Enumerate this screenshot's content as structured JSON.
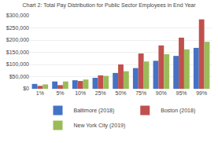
{
  "chart_data": {
    "type": "bar",
    "title": "Chart 2: Total Pay Distribution for Public Sector Employees in End Year",
    "categories": [
      "1%",
      "5%",
      "10%",
      "25%",
      "50%",
      "75%",
      "90%",
      "95%",
      "99%"
    ],
    "series": [
      {
        "name": "Baltimore (2018)",
        "color": "#4472c4",
        "values": [
          20000,
          30000,
          35000,
          45000,
          65000,
          85000,
          115000,
          135000,
          168000
        ]
      },
      {
        "name": "Boston (2018)",
        "color": "#c0504d",
        "values": [
          12000,
          15000,
          32000,
          55000,
          100000,
          145000,
          178000,
          210000,
          285000
        ]
      },
      {
        "name": "New York City (2019)",
        "color": "#9bbb59",
        "values": [
          18000,
          30000,
          38000,
          53000,
          72000,
          112000,
          142000,
          162000,
          193000
        ]
      }
    ],
    "ylim": [
      0,
      300000
    ],
    "yticks": [
      {
        "value": 0,
        "label": "$0"
      },
      {
        "value": 50000,
        "label": "$50,000"
      },
      {
        "value": 100000,
        "label": "$100,000"
      },
      {
        "value": 150000,
        "label": "$150,000"
      },
      {
        "value": 200000,
        "label": "$200,000"
      },
      {
        "value": 250000,
        "label": "$250,000"
      },
      {
        "value": 300000,
        "label": "$300,000"
      }
    ],
    "grid": true,
    "legend": "bottom"
  }
}
